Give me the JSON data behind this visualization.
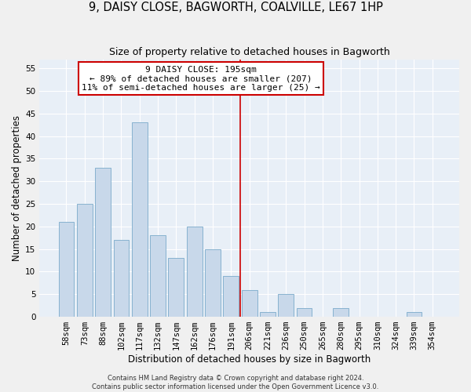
{
  "title": "9, DAISY CLOSE, BAGWORTH, COALVILLE, LE67 1HP",
  "subtitle": "Size of property relative to detached houses in Bagworth",
  "xlabel": "Distribution of detached houses by size in Bagworth",
  "ylabel": "Number of detached properties",
  "bar_color": "#c8d8ea",
  "bar_edge_color": "#7aaaca",
  "categories": [
    "58sqm",
    "73sqm",
    "88sqm",
    "102sqm",
    "117sqm",
    "132sqm",
    "147sqm",
    "162sqm",
    "176sqm",
    "191sqm",
    "206sqm",
    "221sqm",
    "236sqm",
    "250sqm",
    "265sqm",
    "280sqm",
    "295sqm",
    "310sqm",
    "324sqm",
    "339sqm",
    "354sqm"
  ],
  "values": [
    21,
    25,
    33,
    17,
    43,
    18,
    13,
    20,
    15,
    9,
    6,
    1,
    5,
    2,
    0,
    2,
    0,
    0,
    0,
    1,
    0
  ],
  "vline_x": 9.5,
  "vline_color": "#cc0000",
  "annotation_line1": "9 DAISY CLOSE: 195sqm",
  "annotation_line2": "← 89% of detached houses are smaller (207)",
  "annotation_line3": "11% of semi-detached houses are larger (25) →",
  "ylim": [
    0,
    57
  ],
  "yticks": [
    0,
    5,
    10,
    15,
    20,
    25,
    30,
    35,
    40,
    45,
    50,
    55
  ],
  "fig_bg": "#f0f0f0",
  "ax_bg": "#e8eff7",
  "grid_color": "#ffffff",
  "footer": "Contains HM Land Registry data © Crown copyright and database right 2024.\nContains public sector information licensed under the Open Government Licence v3.0.",
  "title_fontsize": 10.5,
  "subtitle_fontsize": 9,
  "xlabel_fontsize": 8.5,
  "ylabel_fontsize": 8.5,
  "tick_fontsize": 7.5,
  "annot_fontsize": 8,
  "footer_fontsize": 6
}
